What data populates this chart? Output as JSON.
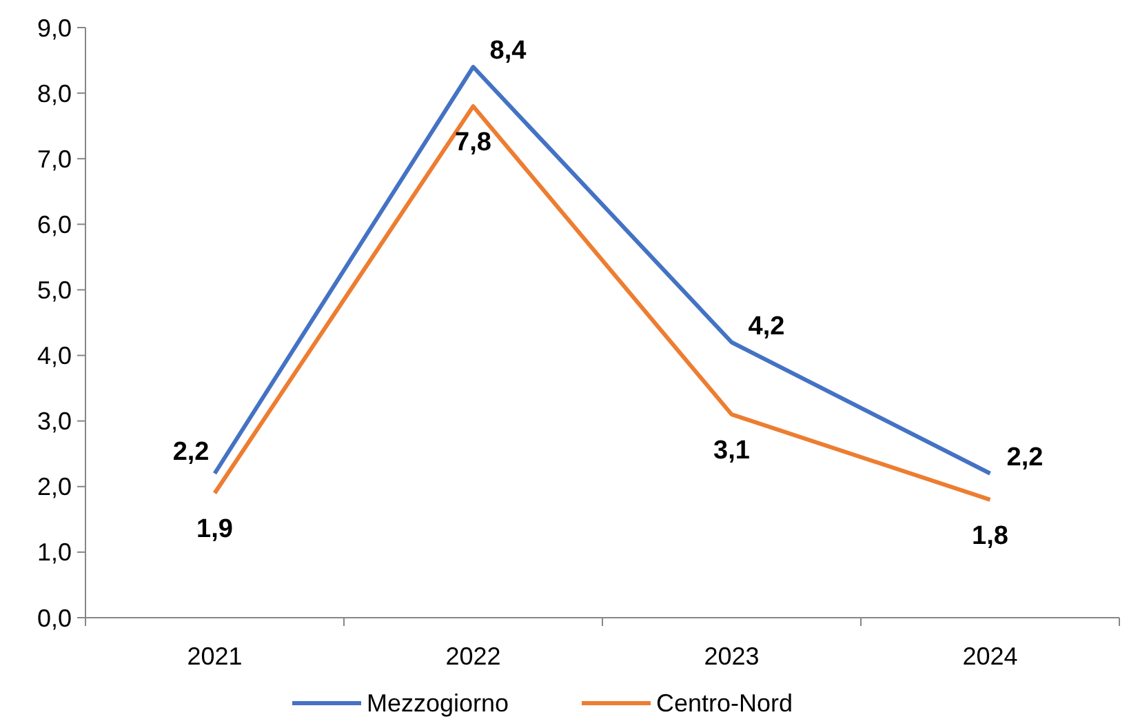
{
  "chart_data": {
    "type": "line",
    "categories": [
      "2021",
      "2022",
      "2023",
      "2024"
    ],
    "series": [
      {
        "name": "Mezzogiorno",
        "color": "#4472c4",
        "values": [
          2.2,
          8.4,
          4.2,
          2.2
        ],
        "value_labels": [
          "2,2",
          "8,4",
          "4,2",
          "2,2"
        ]
      },
      {
        "name": "Centro-Nord",
        "color": "#ed7d31",
        "values": [
          1.9,
          7.8,
          3.1,
          1.8
        ],
        "value_labels": [
          "1,9",
          "7,8",
          "3,1",
          "1,8"
        ]
      }
    ],
    "ylim": [
      0,
      9
    ],
    "yticks": [
      {
        "value": 0,
        "label": "0,0"
      },
      {
        "value": 1,
        "label": "1,0"
      },
      {
        "value": 2,
        "label": "2,0"
      },
      {
        "value": 3,
        "label": "3,0"
      },
      {
        "value": 4,
        "label": "4,0"
      },
      {
        "value": 5,
        "label": "5,0"
      },
      {
        "value": 6,
        "label": "6,0"
      },
      {
        "value": 7,
        "label": "7,0"
      },
      {
        "value": 8,
        "label": "8,0"
      },
      {
        "value": 9,
        "label": "9,0"
      }
    ],
    "grid": false,
    "legend": "bottom",
    "marker": "none",
    "line_style": "solid"
  }
}
